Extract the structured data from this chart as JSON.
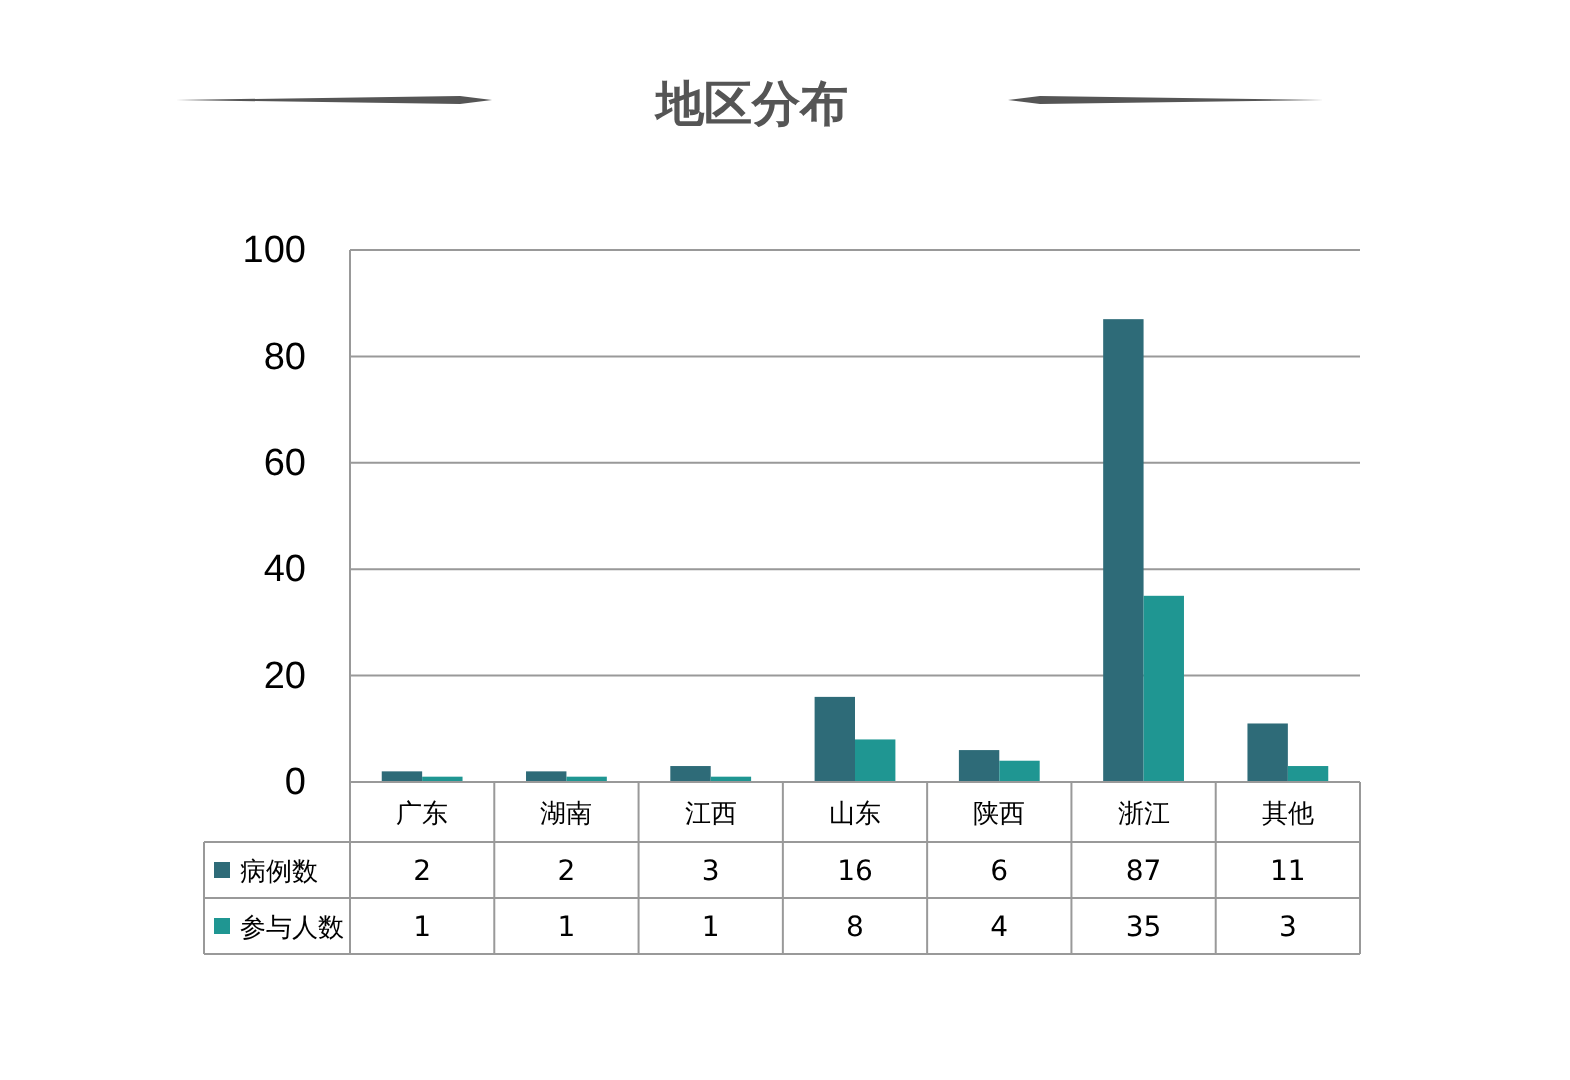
{
  "chart_data": {
    "type": "bar",
    "title": "地区分布",
    "categories": [
      "广东",
      "湖南",
      "江西",
      "山东",
      "陕西",
      "浙江",
      "其他"
    ],
    "series": [
      {
        "name": "病例数",
        "color": "#2e6b78",
        "values": [
          2,
          2,
          3,
          16,
          6,
          87,
          11
        ]
      },
      {
        "name": "参与人数",
        "color": "#1f9692",
        "values": [
          1,
          1,
          1,
          8,
          4,
          35,
          3
        ]
      }
    ],
    "ylim": [
      0,
      100
    ],
    "yticks": [
      0,
      20,
      40,
      60,
      80,
      100
    ],
    "grid": "y",
    "legend": "bottom",
    "data_labels": true
  }
}
